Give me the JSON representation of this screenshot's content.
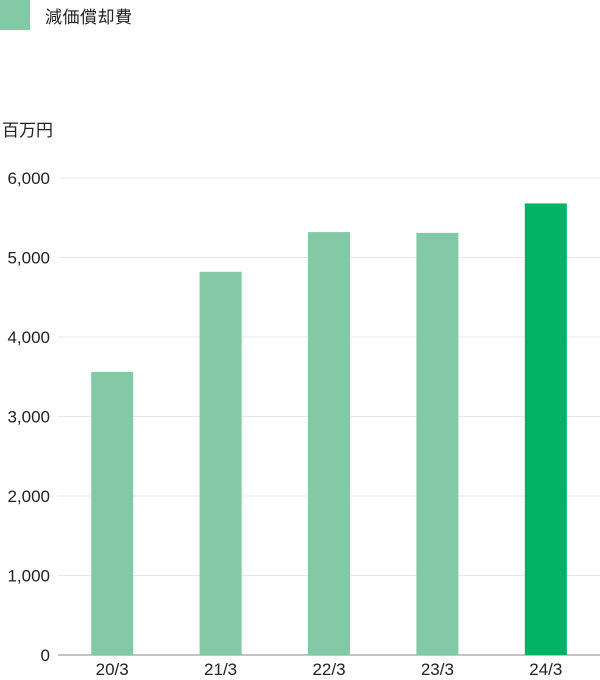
{
  "legend": {
    "label": "減価償却費"
  },
  "colors": {
    "bar": "#84c9a6",
    "highlight": "#00b166",
    "grid": "#e8e8e8",
    "axis": "#888888"
  },
  "chart_data": {
    "type": "bar",
    "categories": [
      "20/3",
      "21/3",
      "22/3",
      "23/3",
      "24/3"
    ],
    "values": [
      3560,
      4820,
      5320,
      5310,
      5680
    ],
    "highlight_index": 4,
    "unit": "百万円",
    "ylim": [
      0,
      6000
    ],
    "yticks": [
      0,
      1000,
      2000,
      3000,
      4000,
      5000,
      6000
    ],
    "ytick_labels": [
      "0",
      "1,000",
      "2,000",
      "3,000",
      "4,000",
      "5,000",
      "6,000"
    ],
    "grid": true,
    "legend_position": "top-left"
  }
}
